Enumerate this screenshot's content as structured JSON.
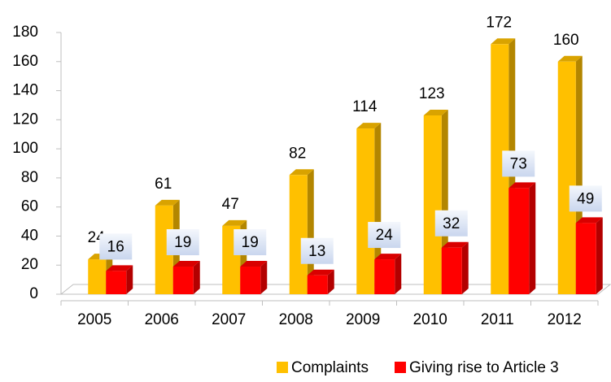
{
  "chart_data": {
    "type": "bar3d",
    "categories": [
      "2005",
      "2006",
      "2007",
      "2008",
      "2009",
      "2010",
      "2011",
      "2012"
    ],
    "series": [
      {
        "name": "Complaints",
        "color": "#FFC000",
        "values": [
          24,
          61,
          47,
          82,
          114,
          123,
          172,
          160
        ]
      },
      {
        "name": "Giving rise to Article 3",
        "color": "#FF0000",
        "values": [
          16,
          19,
          19,
          13,
          24,
          32,
          73,
          49
        ]
      }
    ],
    "ylim": [
      0,
      180
    ],
    "yticks": [
      0,
      20,
      40,
      60,
      80,
      100,
      120,
      140,
      160,
      180
    ],
    "legend": "bottom",
    "grid": false
  }
}
